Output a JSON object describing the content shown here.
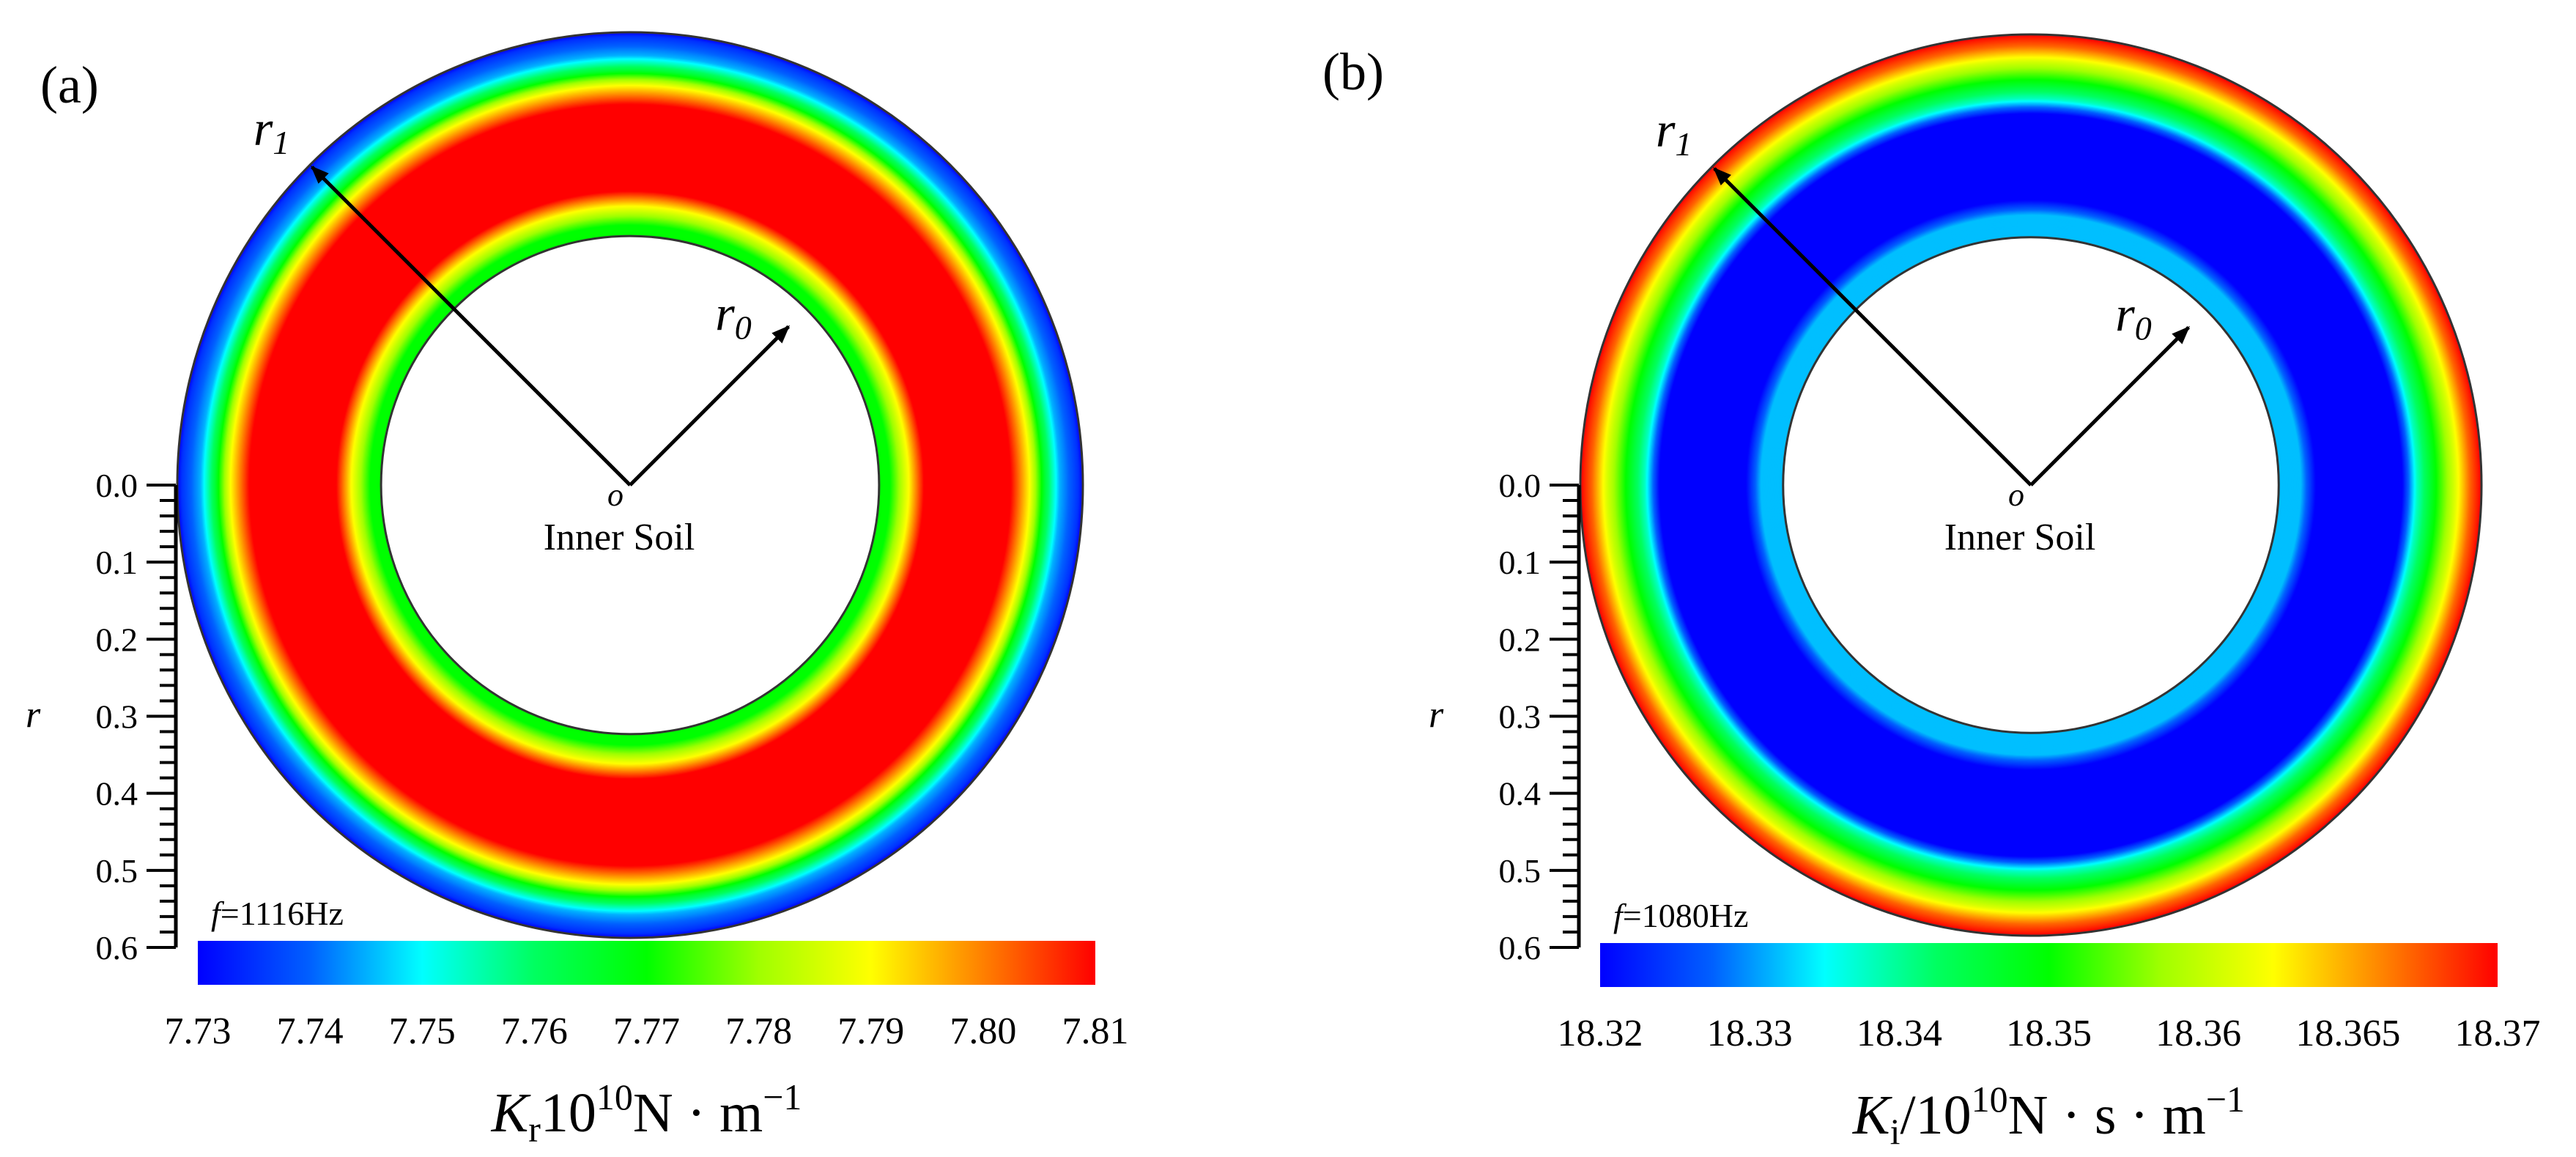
{
  "chart_data": [
    {
      "type": "heatmap",
      "panel_label": "(a)",
      "subtype": "radial annulus contour",
      "vectors": {
        "outer": "r",
        "outer_sub": "1",
        "inner": "r",
        "inner_sub": "0"
      },
      "origin_label": "o",
      "inner_label": "Inner Soil",
      "freq": {
        "sym": "f",
        "text": "=1116Hz"
      },
      "axis": {
        "label": "r",
        "ticks": [
          "0.0",
          "0.1",
          "0.2",
          "0.3",
          "0.4",
          "0.5",
          "0.6"
        ],
        "range": [
          0,
          0.6
        ]
      },
      "colorbar": {
        "tick_labels": [
          "7.73",
          "7.74",
          "7.75",
          "7.76",
          "7.77",
          "7.78",
          "7.79",
          "7.80",
          "7.81"
        ],
        "range": [
          7.73,
          7.81
        ],
        "title_sym": "K",
        "title_sub": "r",
        "title_tail_base": "10",
        "title_tail_exp": "10",
        "title_tail_units": "N · m",
        "title_tail_unit_exp": "−1"
      },
      "bands": [
        {
          "r": 0.6,
          "value": 7.73
        },
        {
          "r": 0.595,
          "value": 7.735
        },
        {
          "r": 0.57,
          "value": 7.745
        },
        {
          "r": 0.55,
          "value": 7.765
        },
        {
          "r": 0.53,
          "value": 7.79
        },
        {
          "r": 0.505,
          "value": 7.81
        },
        {
          "r": 0.39,
          "value": 7.81
        },
        {
          "r": 0.37,
          "value": 7.79
        },
        {
          "r": 0.345,
          "value": 7.77
        },
        {
          "r": 0.33,
          "value": 7.77
        }
      ],
      "inner_radius": 0.33
    },
    {
      "type": "heatmap",
      "panel_label": "(b)",
      "subtype": "radial annulus contour",
      "vectors": {
        "outer": "r",
        "outer_sub": "1",
        "inner": "r",
        "inner_sub": "0"
      },
      "origin_label": "o",
      "inner_label": "Inner Soil",
      "freq": {
        "sym": "f",
        "text": "=1080Hz"
      },
      "axis": {
        "label": "r",
        "ticks": [
          "0.0",
          "0.1",
          "0.2",
          "0.3",
          "0.4",
          "0.5",
          "0.6"
        ],
        "range": [
          0,
          0.6
        ]
      },
      "colorbar": {
        "tick_labels": [
          "18.32",
          "18.33",
          "18.34",
          "18.35",
          "18.36",
          "18.365",
          "18.37"
        ],
        "range": [
          18.32,
          18.37
        ],
        "title_sym": "K",
        "title_sub": "i",
        "title_tail_base": "/10",
        "title_tail_exp": "10",
        "title_tail_units": "N · s · m",
        "title_tail_unit_exp": "−1"
      },
      "bands": [
        {
          "r": 0.6,
          "value": 18.37
        },
        {
          "r": 0.585,
          "value": 18.365
        },
        {
          "r": 0.565,
          "value": 18.355
        },
        {
          "r": 0.54,
          "value": 18.345
        },
        {
          "r": 0.515,
          "value": 18.335
        },
        {
          "r": 0.495,
          "value": 18.32
        },
        {
          "r": 0.38,
          "value": 18.32
        },
        {
          "r": 0.36,
          "value": 18.33
        },
        {
          "r": 0.33,
          "value": 18.33
        }
      ],
      "inner_radius": 0.33
    }
  ]
}
